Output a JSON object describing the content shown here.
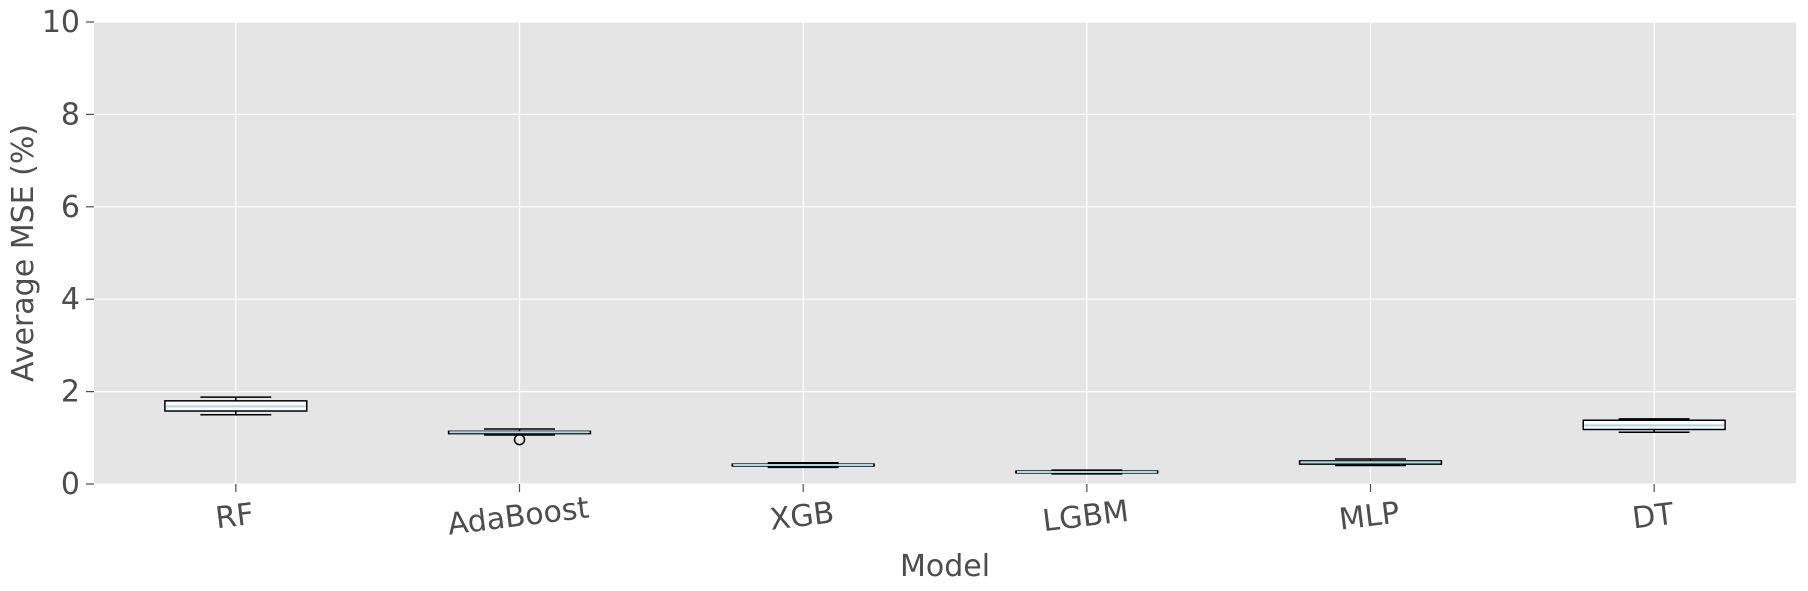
{
  "chart_data": {
    "type": "box",
    "title": "",
    "xlabel": "Model",
    "ylabel": "Average MSE (%)",
    "ylim": [
      0,
      10
    ],
    "yticks": [
      0,
      2,
      4,
      6,
      8,
      10
    ],
    "grid": true,
    "legend": "none",
    "categories": [
      "RF",
      "AdaBoost",
      "XGB",
      "LGBM",
      "MLP",
      "DT"
    ],
    "boxes": [
      {
        "whisker_low": 1.5,
        "q1": 1.58,
        "median": 1.68,
        "q3": 1.8,
        "whisker_high": 1.88,
        "outliers": []
      },
      {
        "whisker_low": 1.06,
        "q1": 1.09,
        "median": 1.12,
        "q3": 1.14,
        "whisker_high": 1.19,
        "outliers": [
          0.96
        ]
      },
      {
        "whisker_low": 0.36,
        "q1": 0.39,
        "median": 0.41,
        "q3": 0.43,
        "whisker_high": 0.46,
        "outliers": []
      },
      {
        "whisker_low": 0.22,
        "q1": 0.24,
        "median": 0.26,
        "q3": 0.28,
        "whisker_high": 0.3,
        "outliers": []
      },
      {
        "whisker_low": 0.4,
        "q1": 0.43,
        "median": 0.47,
        "q3": 0.5,
        "whisker_high": 0.54,
        "outliers": []
      },
      {
        "whisker_low": 1.12,
        "q1": 1.18,
        "median": 1.27,
        "q3": 1.38,
        "whisker_high": 1.41,
        "outliers": []
      }
    ],
    "colors": {
      "plot_background": "#e5e5e5",
      "grid": "#ffffff",
      "box_fill": "#ffffff",
      "box_edge": "#000000",
      "median": "#add8e6",
      "tick_text": "#4d4d4d"
    }
  }
}
